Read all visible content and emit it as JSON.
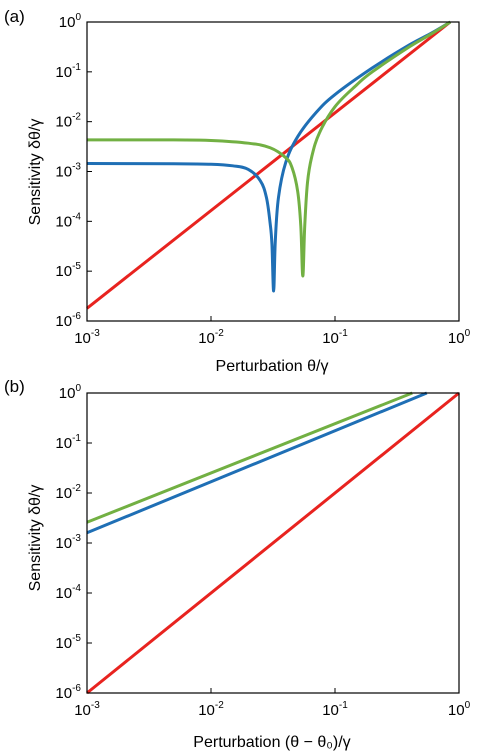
{
  "chart_data": [
    {
      "type": "line",
      "panel_label": "(a)",
      "xlabel": "Perturbation θ/γ",
      "ylabel": "Sensitivity δθ/γ",
      "xscale": "log",
      "yscale": "log",
      "xlim": [
        0.001,
        1
      ],
      "ylim": [
        1e-06,
        1
      ],
      "x_ticks": [
        {
          "base": "10",
          "exp": "-3",
          "value": 0.001
        },
        {
          "base": "10",
          "exp": "-2",
          "value": 0.01
        },
        {
          "base": "10",
          "exp": "-1",
          "value": 0.1
        },
        {
          "base": "10",
          "exp": "0",
          "value": 1
        }
      ],
      "y_ticks": [
        {
          "base": "10",
          "exp": "-6",
          "value": 1e-06
        },
        {
          "base": "10",
          "exp": "-5",
          "value": 1e-05
        },
        {
          "base": "10",
          "exp": "-4",
          "value": 0.0001
        },
        {
          "base": "10",
          "exp": "-3",
          "value": 0.001
        },
        {
          "base": "10",
          "exp": "-2",
          "value": 0.01
        },
        {
          "base": "10",
          "exp": "-1",
          "value": 0.1
        },
        {
          "base": "10",
          "exp": "0",
          "value": 1
        }
      ],
      "grid": false,
      "series": [
        {
          "color": "#e8231f",
          "x": [
            0.001,
            0.85
          ],
          "y": [
            1.8e-06,
            1.0
          ]
        },
        {
          "color": "#1f6fb5",
          "x": [
            0.001,
            0.005,
            0.01,
            0.015,
            0.02,
            0.025,
            0.028,
            0.03,
            0.031,
            0.032,
            0.033,
            0.035,
            0.04,
            0.05,
            0.07,
            0.1,
            0.2,
            0.4,
            0.6,
            0.85
          ],
          "y": [
            0.00145,
            0.00143,
            0.0014,
            0.0013,
            0.0011,
            0.00065,
            0.0003,
            9e-05,
            3.5e-05,
            4e-06,
            4e-05,
            0.0003,
            0.0015,
            0.005,
            0.015,
            0.035,
            0.12,
            0.35,
            0.6,
            1.0
          ]
        },
        {
          "color": "#72b043",
          "x": [
            0.001,
            0.005,
            0.01,
            0.02,
            0.03,
            0.04,
            0.045,
            0.05,
            0.053,
            0.055,
            0.057,
            0.06,
            0.065,
            0.075,
            0.1,
            0.15,
            0.2,
            0.4,
            0.6,
            0.85
          ],
          "y": [
            0.0043,
            0.0043,
            0.0042,
            0.0037,
            0.003,
            0.0019,
            0.0012,
            0.0004,
            8e-05,
            8e-06,
            8e-05,
            0.0006,
            0.002,
            0.006,
            0.02,
            0.055,
            0.1,
            0.32,
            0.58,
            1.0
          ]
        }
      ]
    },
    {
      "type": "line",
      "panel_label": "(b)",
      "xlabel": "Perturbation (θ − θ₀)/γ",
      "ylabel": "Sensitivity δθ/γ",
      "xscale": "log",
      "yscale": "log",
      "xlim": [
        0.001,
        1
      ],
      "ylim": [
        1e-06,
        1
      ],
      "x_ticks": [
        {
          "base": "10",
          "exp": "-3",
          "value": 0.001
        },
        {
          "base": "10",
          "exp": "-2",
          "value": 0.01
        },
        {
          "base": "10",
          "exp": "-1",
          "value": 0.1
        },
        {
          "base": "10",
          "exp": "0",
          "value": 1
        }
      ],
      "y_ticks": [
        {
          "base": "10",
          "exp": "-6",
          "value": 1e-06
        },
        {
          "base": "10",
          "exp": "-5",
          "value": 1e-05
        },
        {
          "base": "10",
          "exp": "-4",
          "value": 0.0001
        },
        {
          "base": "10",
          "exp": "-3",
          "value": 0.001
        },
        {
          "base": "10",
          "exp": "-2",
          "value": 0.01
        },
        {
          "base": "10",
          "exp": "-1",
          "value": 0.1
        },
        {
          "base": "10",
          "exp": "0",
          "value": 1
        }
      ],
      "grid": false,
      "series": [
        {
          "color": "#e8231f",
          "x": [
            0.001,
            1.0
          ],
          "y": [
            1e-06,
            1.0
          ]
        },
        {
          "color": "#1f6fb5",
          "x": [
            0.001,
            0.55
          ],
          "y": [
            0.0016,
            1.0
          ]
        },
        {
          "color": "#72b043",
          "x": [
            0.001,
            0.42
          ],
          "y": [
            0.0026,
            1.0
          ]
        }
      ]
    }
  ]
}
